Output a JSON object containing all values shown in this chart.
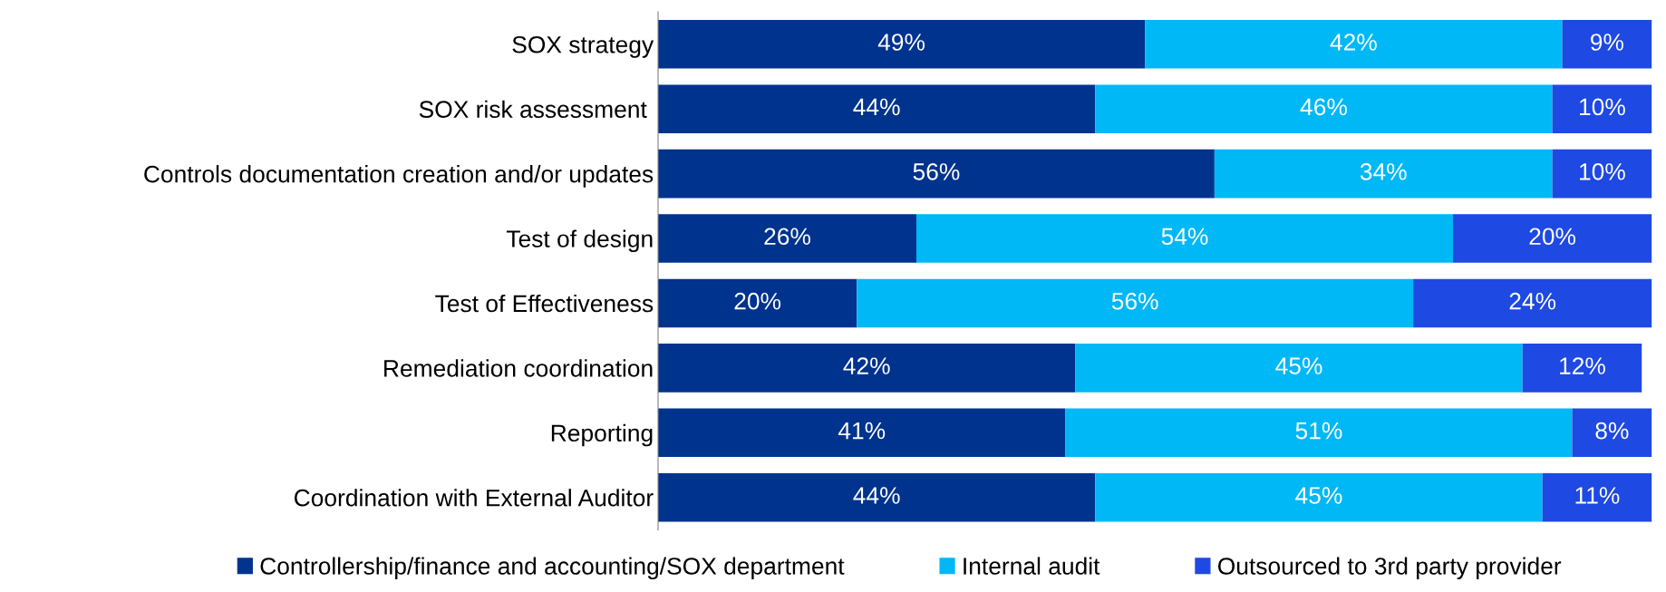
{
  "chart_data": {
    "type": "bar",
    "orientation": "horizontal",
    "stacked": true,
    "legend": "bottom",
    "categories": [
      "SOX strategy",
      "SOX risk assessment ",
      "Controls documentation creation and/or updates",
      "Test of design",
      "Test of Effectiveness",
      "Remediation coordination",
      "Reporting",
      "Coordination with External Auditor"
    ],
    "series": [
      {
        "name": "Controllership/finance and accounting/SOX department",
        "color": "#00338d",
        "values": [
          49,
          44,
          56,
          26,
          20,
          42,
          41,
          44
        ],
        "value_labels": [
          "49%",
          "44%",
          "56%",
          "26%",
          "20%",
          "42%",
          "41%",
          "44%"
        ]
      },
      {
        "name": "Internal audit",
        "color": "#00b8f5",
        "values": [
          42,
          46,
          34,
          54,
          56,
          45,
          51,
          45
        ],
        "value_labels": [
          "42%",
          "46%",
          "34%",
          "54%",
          "56%",
          "45%",
          "51%",
          "45%"
        ]
      },
      {
        "name": "Outsourced to 3rd party provider",
        "color": "#1e49e2",
        "values": [
          9,
          10,
          10,
          20,
          24,
          12,
          8,
          11
        ],
        "value_labels": [
          "9%",
          "10%",
          "10%",
          "20%",
          "24%",
          "12%",
          "8%",
          "11%"
        ]
      }
    ]
  }
}
